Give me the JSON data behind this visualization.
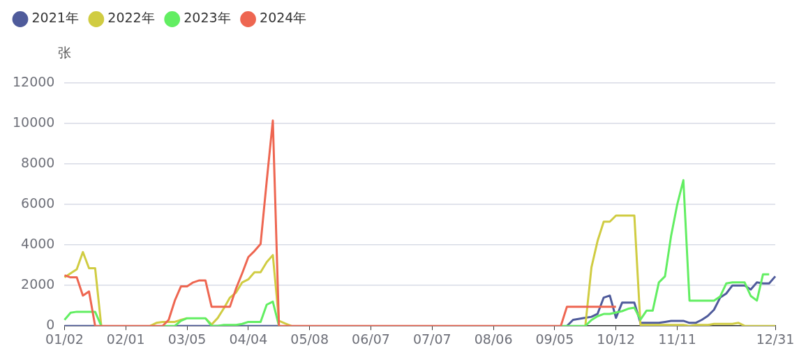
{
  "chart_data": {
    "type": "line",
    "ylabel": "张",
    "legend": "top left",
    "grid": "y",
    "marker": "none",
    "line_style": "solid",
    "ylim": [
      0,
      12000
    ],
    "categories": [
      "01/02",
      null,
      null,
      null,
      null,
      null,
      null,
      null,
      null,
      null,
      "02/01",
      null,
      null,
      null,
      null,
      null,
      null,
      null,
      null,
      null,
      "03/05",
      null,
      null,
      null,
      null,
      null,
      null,
      null,
      null,
      null,
      "04/04",
      null,
      null,
      null,
      null,
      null,
      null,
      null,
      null,
      null,
      "05/08",
      null,
      null,
      null,
      null,
      null,
      null,
      null,
      null,
      null,
      "06/07",
      null,
      null,
      null,
      null,
      null,
      null,
      null,
      null,
      null,
      "07/07",
      null,
      null,
      null,
      null,
      null,
      null,
      null,
      null,
      null,
      "08/06",
      null,
      null,
      null,
      null,
      null,
      null,
      null,
      null,
      null,
      "09/05",
      null,
      null,
      null,
      null,
      null,
      null,
      null,
      null,
      null,
      "10/12",
      null,
      null,
      null,
      null,
      null,
      null,
      null,
      null,
      null,
      "11/11",
      null,
      null,
      null,
      null,
      null,
      null,
      null,
      null,
      null,
      null,
      null,
      null,
      null,
      null,
      null,
      "12/31"
    ],
    "yticks": [
      0,
      2000,
      4000,
      6000,
      8000,
      10000,
      12000
    ],
    "series": [
      {
        "name": "2021年",
        "color": "#4f5b9b",
        "values": [
          0,
          0,
          0,
          0,
          0,
          0,
          null,
          null,
          null,
          null,
          null,
          null,
          null,
          null,
          null,
          null,
          null,
          null,
          0,
          0,
          0,
          0,
          0,
          0,
          0,
          0,
          0,
          0,
          0,
          0,
          0,
          0,
          0,
          0,
          0,
          0,
          null,
          null,
          null,
          null,
          null,
          null,
          null,
          null,
          null,
          null,
          null,
          null,
          null,
          null,
          null,
          null,
          null,
          null,
          null,
          null,
          null,
          null,
          null,
          null,
          null,
          null,
          null,
          null,
          null,
          null,
          null,
          null,
          null,
          null,
          null,
          null,
          null,
          null,
          null,
          null,
          null,
          null,
          null,
          null,
          null,
          null,
          0,
          300,
          350,
          400,
          450,
          600,
          1400,
          1500,
          400,
          1150,
          1150,
          1150,
          150,
          150,
          150,
          150,
          200,
          250,
          250,
          250,
          150,
          150,
          300,
          500,
          800,
          1400,
          1600,
          2000,
          2000,
          2000,
          1800,
          2150,
          2100,
          2100,
          2450
        ]
      },
      {
        "name": "2022年",
        "color": "#d0cc42",
        "values": [
          2400,
          2600,
          2800,
          3650,
          2850,
          2850,
          0,
          null,
          null,
          null,
          null,
          null,
          null,
          null,
          0,
          150,
          200,
          200,
          200,
          300,
          380,
          null,
          null,
          380,
          70,
          390,
          870,
          1400,
          1650,
          2150,
          2300,
          2650,
          2650,
          3150,
          3500,
          250,
          120,
          0,
          null,
          null,
          null,
          null,
          null,
          null,
          null,
          null,
          null,
          null,
          null,
          null,
          null,
          null,
          null,
          null,
          null,
          null,
          null,
          null,
          null,
          null,
          null,
          null,
          null,
          null,
          null,
          null,
          null,
          null,
          null,
          null,
          null,
          null,
          null,
          null,
          null,
          null,
          null,
          null,
          null,
          null,
          null,
          null,
          null,
          null,
          null,
          0,
          2900,
          4200,
          5150,
          5150,
          5450,
          5450,
          5450,
          5450,
          50,
          50,
          50,
          50,
          50,
          50,
          50,
          50,
          0,
          50,
          50,
          50,
          100,
          100,
          100,
          100,
          150,
          0,
          0,
          0,
          0,
          0,
          0
        ]
      },
      {
        "name": "2023年",
        "color": "#62ee62",
        "values": [
          300,
          650,
          700,
          700,
          700,
          700,
          0,
          null,
          null,
          null,
          null,
          null,
          null,
          null,
          null,
          null,
          0,
          0,
          0,
          250,
          380,
          380,
          380,
          380,
          0,
          0,
          50,
          50,
          50,
          100,
          200,
          200,
          200,
          1050,
          1200,
          0,
          null,
          null,
          null,
          null,
          null,
          null,
          null,
          null,
          null,
          null,
          null,
          null,
          null,
          null,
          null,
          null,
          null,
          null,
          null,
          null,
          null,
          null,
          null,
          null,
          null,
          null,
          null,
          null,
          null,
          null,
          null,
          null,
          null,
          null,
          null,
          null,
          null,
          null,
          null,
          null,
          null,
          null,
          null,
          null,
          null,
          0,
          0,
          0,
          0,
          0,
          290,
          480,
          590,
          590,
          660,
          730,
          850,
          900,
          310,
          760,
          760,
          2150,
          2450,
          4450,
          6000,
          7200,
          1250,
          1250,
          1250,
          1250,
          1250,
          1450,
          2100,
          2150,
          2150,
          2150,
          1480,
          1250,
          2550,
          2550,
          null
        ]
      },
      {
        "name": "2024年",
        "color": "#ee6651",
        "values": [
          2500,
          2400,
          2400,
          1500,
          1700,
          0,
          0,
          0,
          0,
          0,
          0,
          0,
          0,
          0,
          0,
          0,
          0,
          300,
          1250,
          1950,
          1950,
          2150,
          2250,
          2250,
          950,
          950,
          950,
          950,
          1850,
          2600,
          3400,
          3700,
          4050,
          7150,
          10150,
          0,
          0,
          0,
          0,
          0,
          0,
          0,
          0,
          0,
          0,
          0,
          0,
          0,
          0,
          0,
          0,
          0,
          0,
          0,
          0,
          0,
          0,
          0,
          0,
          0,
          0,
          0,
          0,
          0,
          0,
          0,
          0,
          0,
          0,
          0,
          0,
          0,
          0,
          0,
          0,
          0,
          0,
          0,
          0,
          0,
          0,
          0,
          950,
          950,
          950,
          950,
          950,
          950,
          950,
          950,
          950,
          null,
          null,
          null,
          null,
          null,
          null,
          null,
          null,
          null,
          null,
          null,
          null,
          null,
          null,
          null,
          null,
          null,
          null,
          null,
          null,
          null,
          null,
          null,
          null,
          null,
          null
        ]
      }
    ]
  }
}
